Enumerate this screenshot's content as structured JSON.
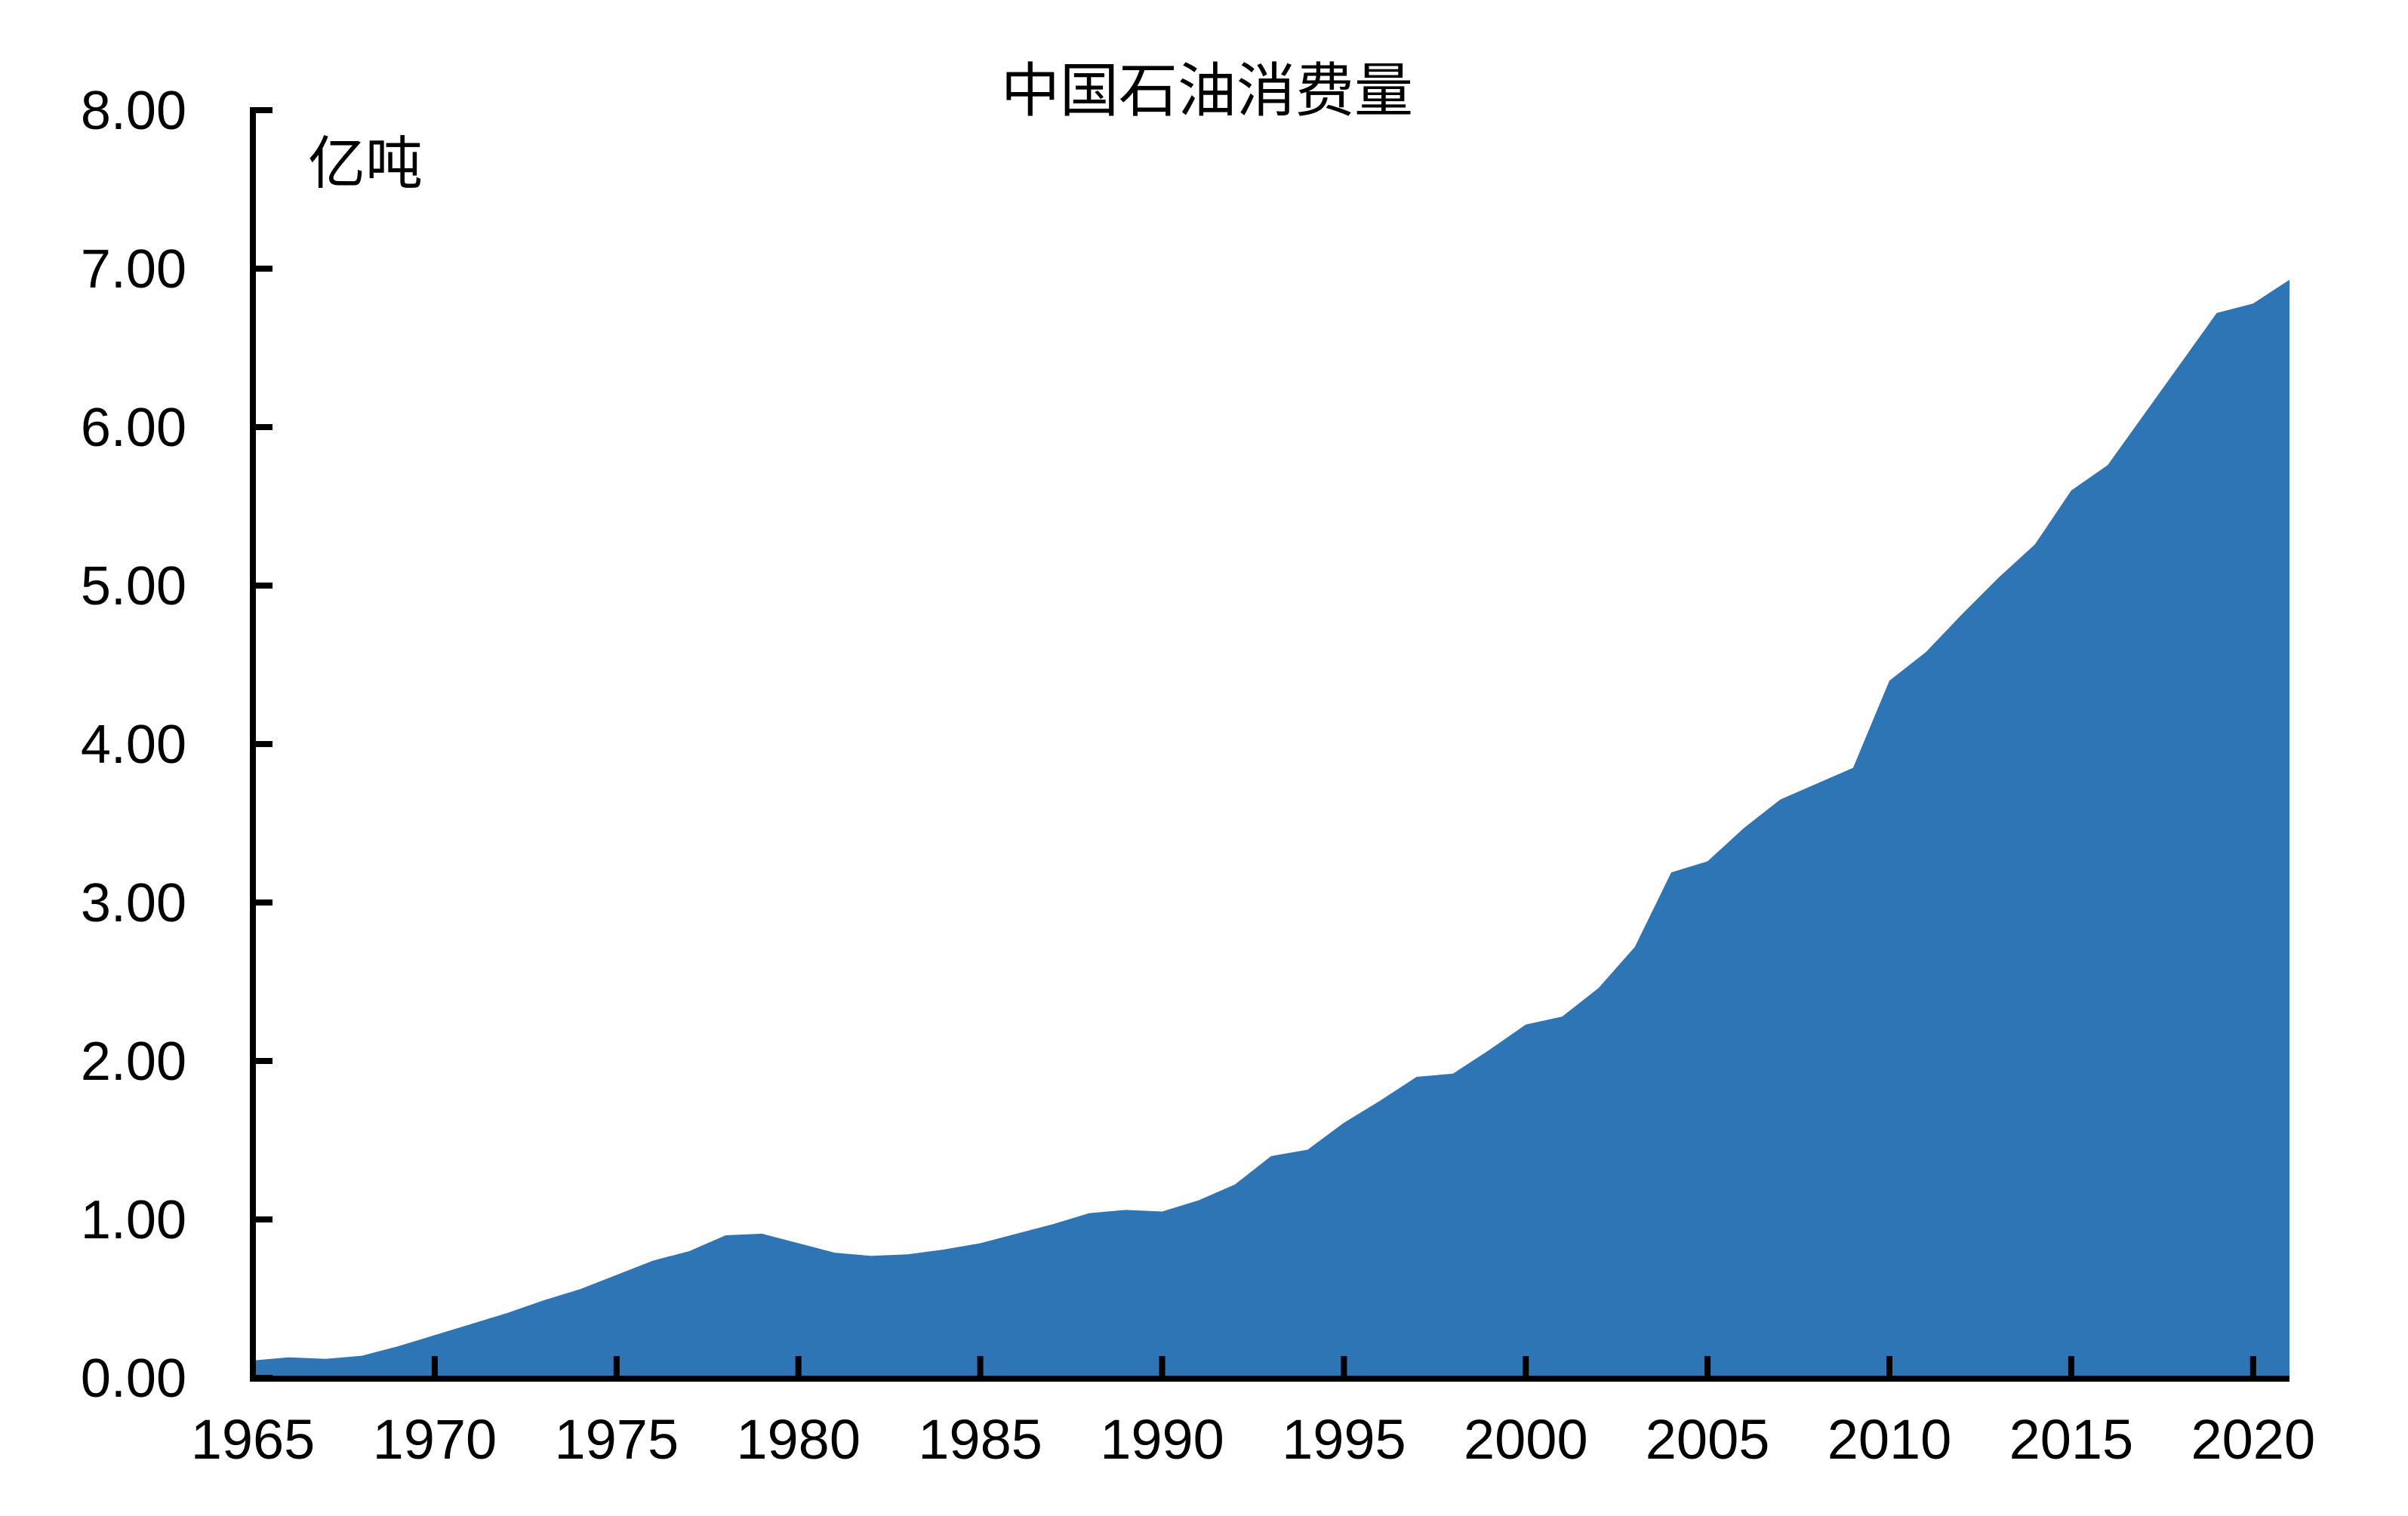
{
  "page": {
    "background": "#FFFFFF"
  },
  "chart_data": {
    "type": "area",
    "title": "中国石油消费量",
    "ylabel": "亿吨",
    "xlabel": "",
    "series_name": "中国石油消费量",
    "fill_color": "#2E75B6",
    "axis_color": "#000000",
    "text_color": "#000000",
    "grid": false,
    "legend": "none",
    "xlim": [
      1965,
      2021
    ],
    "ylim": [
      0.0,
      8.0
    ],
    "x": [
      1965,
      1966,
      1967,
      1968,
      1969,
      1970,
      1971,
      1972,
      1973,
      1974,
      1975,
      1976,
      1977,
      1978,
      1979,
      1980,
      1981,
      1982,
      1983,
      1984,
      1985,
      1986,
      1987,
      1988,
      1989,
      1990,
      1991,
      1992,
      1993,
      1994,
      1995,
      1996,
      1997,
      1998,
      1999,
      2000,
      2001,
      2002,
      2003,
      2004,
      2005,
      2006,
      2007,
      2008,
      2009,
      2010,
      2011,
      2012,
      2013,
      2014,
      2015,
      2016,
      2017,
      2018,
      2019,
      2020,
      2021
    ],
    "values": [
      0.11,
      0.13,
      0.12,
      0.14,
      0.2,
      0.27,
      0.34,
      0.41,
      0.49,
      0.56,
      0.65,
      0.74,
      0.8,
      0.9,
      0.91,
      0.85,
      0.79,
      0.77,
      0.78,
      0.81,
      0.85,
      0.91,
      0.97,
      1.04,
      1.06,
      1.05,
      1.12,
      1.22,
      1.4,
      1.44,
      1.61,
      1.75,
      1.9,
      1.92,
      2.07,
      2.23,
      2.28,
      2.46,
      2.72,
      3.19,
      3.26,
      3.47,
      3.65,
      3.75,
      3.85,
      4.4,
      4.58,
      4.82,
      5.05,
      5.26,
      5.6,
      5.76,
      6.08,
      6.4,
      6.72,
      6.78,
      6.93
    ],
    "x_ticks": [
      1965,
      1970,
      1975,
      1980,
      1985,
      1990,
      1995,
      2000,
      2005,
      2010,
      2015,
      2020
    ],
    "x_tick_labels": [
      "1965",
      "1970",
      "1975",
      "1980",
      "1985",
      "1990",
      "1995",
      "2000",
      "2005",
      "2010",
      "2015",
      "2020"
    ],
    "y_ticks": [
      0,
      1,
      2,
      3,
      4,
      5,
      6,
      7,
      8
    ],
    "y_tick_labels": [
      "0.00",
      "1.00",
      "2.00",
      "3.00",
      "4.00",
      "5.00",
      "6.00",
      "7.00",
      "8.00"
    ]
  }
}
